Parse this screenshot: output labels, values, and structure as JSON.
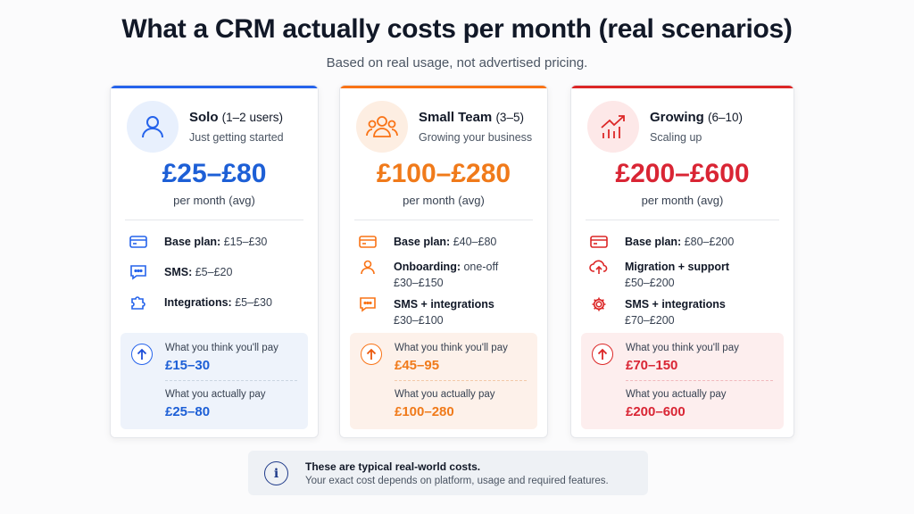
{
  "header": {
    "title": "What a CRM actually costs per month (real scenarios)",
    "subtitle": "Based on real usage, not advertised pricing."
  },
  "colors": {
    "blue": "#2563eb",
    "orange": "#f97316",
    "red": "#dc2626"
  },
  "cards": [
    {
      "name": "Solo",
      "users": "(1–2 users)",
      "tagline": "Just getting started",
      "icon": "user-icon",
      "price": "£25–£80",
      "per_month": "per month (avg)",
      "items": [
        {
          "icon": "credit-card-icon",
          "label": "Base plan:",
          "value": "£15–£30"
        },
        {
          "icon": "chat-bubble-icon",
          "label": "SMS:",
          "value": "£5–£20"
        },
        {
          "icon": "puzzle-icon",
          "label": "Integrations:",
          "value": "£5–£30"
        }
      ],
      "think_label": "What you think you'll pay",
      "think_value": "£15–30",
      "actual_label": "What you actually pay",
      "actual_value": "£25–80"
    },
    {
      "name": "Small Team",
      "users": "(3–5)",
      "tagline": "Growing your business",
      "icon": "users-group-icon",
      "price": "£100–£280",
      "per_month": "per month (avg)",
      "items": [
        {
          "icon": "credit-card-icon",
          "label": "Base plan:",
          "value": "£40–£80"
        },
        {
          "icon": "person-icon",
          "label": "Onboarding:",
          "value": "one-off",
          "value2": "£30–£150"
        },
        {
          "icon": "chat-bubble-icon",
          "label": "SMS + integrations",
          "value": "",
          "value2": "£30–£100"
        }
      ],
      "think_label": "What you think you'll pay",
      "think_value": "£45–95",
      "actual_label": "What you actually pay",
      "actual_value": "£100–280"
    },
    {
      "name": "Growing",
      "users": "(6–10)",
      "tagline": "Scaling up",
      "icon": "growth-chart-icon",
      "price": "£200–£600",
      "per_month": "per month (avg)",
      "items": [
        {
          "icon": "credit-card-icon",
          "label": "Base plan:",
          "value": "£80–£200"
        },
        {
          "icon": "cloud-upload-icon",
          "label": "Migration + support",
          "value": "",
          "value2": "£50–£200"
        },
        {
          "icon": "gear-icon",
          "label": "SMS + integrations",
          "value": "",
          "value2": "£70–£200"
        }
      ],
      "think_label": "What you think you'll pay",
      "think_value": "£70–150",
      "actual_label": "What you actually pay",
      "actual_value": "£200–600"
    }
  ],
  "note": {
    "icon": "info-icon",
    "line1": "These are typical real-world costs.",
    "line2": "Your exact cost depends on platform, usage and required features."
  }
}
